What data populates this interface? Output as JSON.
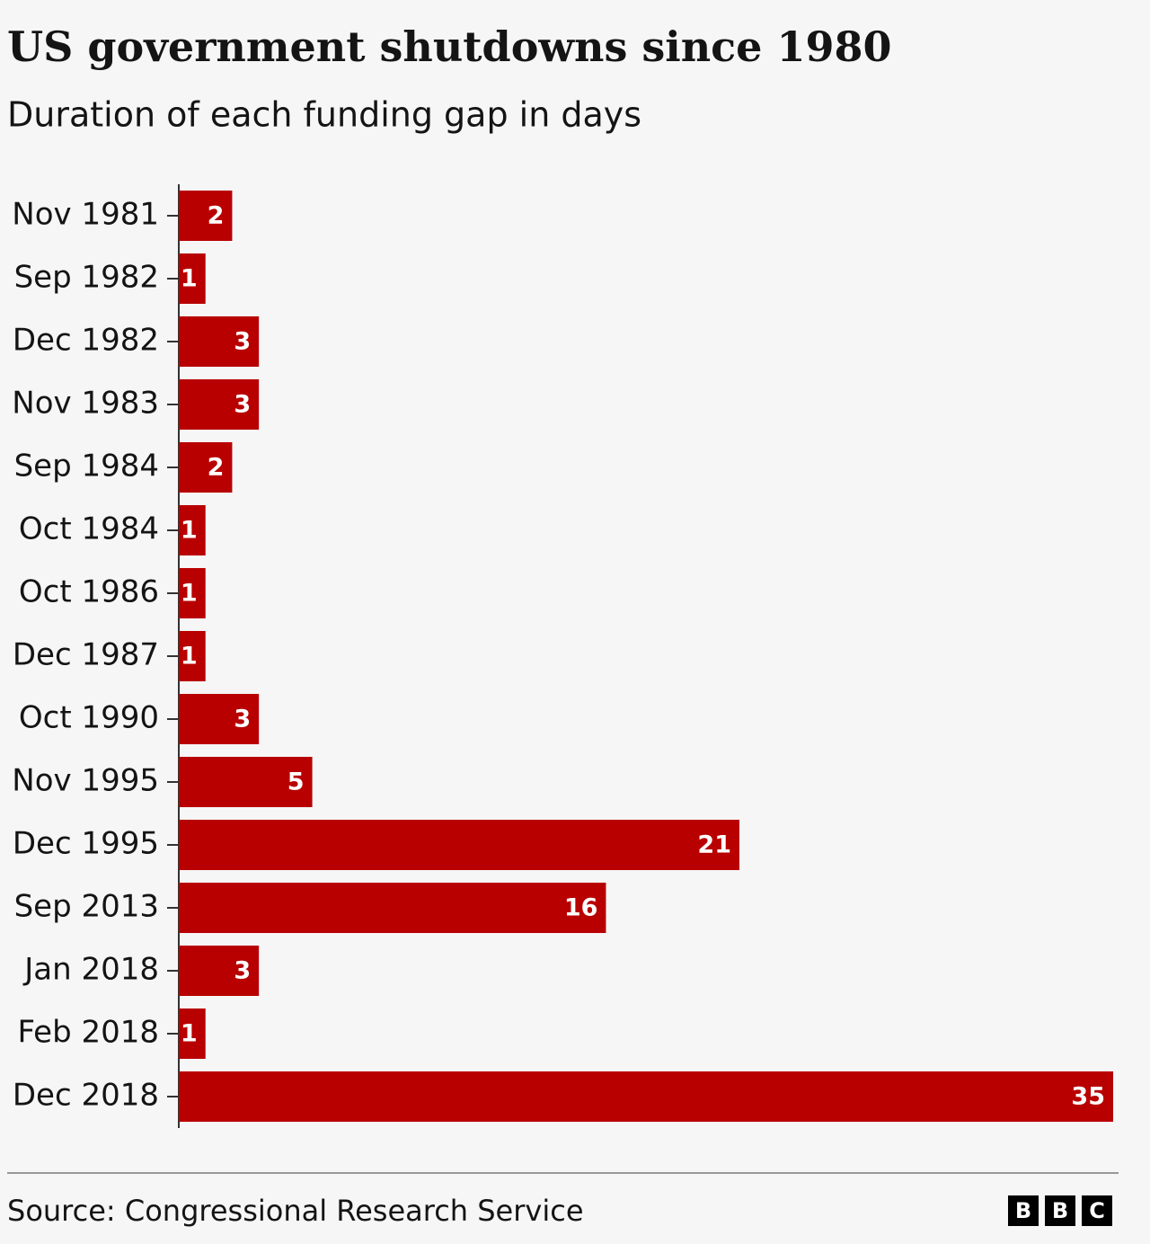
{
  "chart_data": {
    "type": "bar",
    "orientation": "horizontal",
    "title": "US government shutdowns since 1980",
    "subtitle": "Duration of each funding gap in days",
    "categories": [
      "Nov 1981",
      "Sep 1982",
      "Dec 1982",
      "Nov 1983",
      "Sep 1984",
      "Oct 1984",
      "Oct 1986",
      "Dec 1987",
      "Oct 1990",
      "Nov 1995",
      "Dec 1995",
      "Sep 2013",
      "Jan 2018",
      "Feb 2018",
      "Dec 2018"
    ],
    "values": [
      2,
      1,
      3,
      3,
      2,
      1,
      1,
      1,
      3,
      5,
      21,
      16,
      3,
      1,
      35
    ],
    "color": "#b80000",
    "source": "Source: Congressional Research Service",
    "logo": [
      "B",
      "B",
      "C"
    ]
  }
}
